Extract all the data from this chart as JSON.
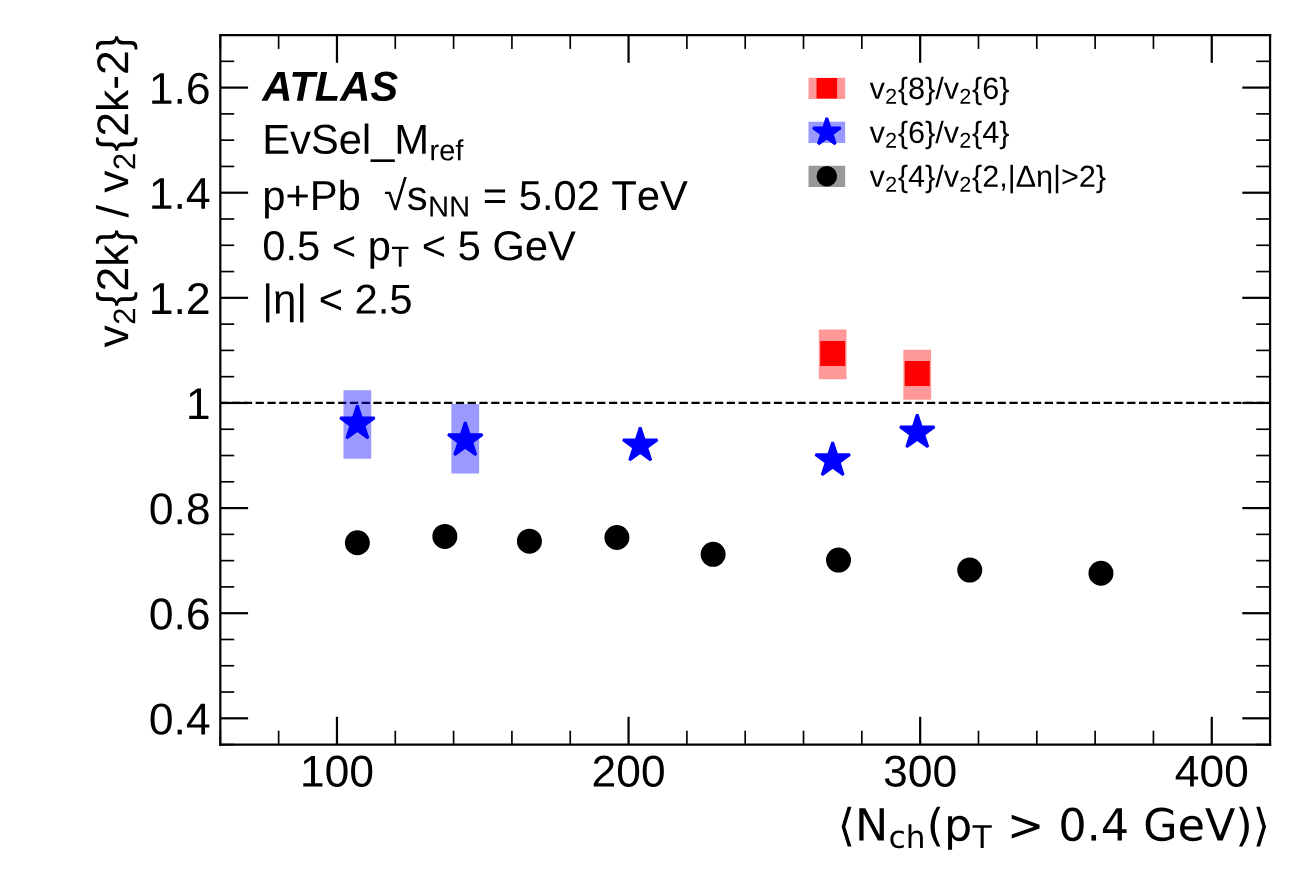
{
  "chart_data": {
    "type": "scatter",
    "xlabel": "⟨N$_{ch}$(p$_{T}$ > 0.4 GeV)⟩",
    "ylabel": "v$_{2}${2k} / v$_{2}${2k-2}",
    "annotations": [
      "ATLAS",
      "EvSel_M$_{ref}$",
      "p+Pb  √s$_{NN}$ = 5.02 TeV",
      "0.5 < p$_{T}$ < 5 GeV",
      "|η| < 2.5"
    ],
    "series": [
      {
        "name": "v$_{2}${8}/v$_{2}${6}",
        "color": "#ff0000",
        "marker": "square",
        "x": [
          270,
          299
        ],
        "values": [
          1.094,
          1.056
        ],
        "errors": [
          [
            1.045,
            1.14
          ],
          [
            1.006,
            1.101
          ]
        ]
      },
      {
        "name": "v$_{2}${6}/v$_{2}${4}",
        "color": "#0000ff",
        "marker": "star",
        "x": [
          107,
          144,
          204,
          270,
          299
        ],
        "values": [
          0.961,
          0.929,
          0.919,
          0.891,
          0.944
        ],
        "errors": [
          [
            0.894,
            1.024
          ],
          [
            0.866,
            0.998
          ],
          null,
          null,
          null
        ]
      },
      {
        "name": "v$_{2}${4}/v$_{2}${2,|Δη|>2}",
        "color": "#000000",
        "marker": "circle",
        "x": [
          107,
          137,
          166,
          196,
          229,
          272,
          317,
          362
        ],
        "values": [
          0.734,
          0.746,
          0.737,
          0.744,
          0.712,
          0.701,
          0.682,
          0.676
        ]
      }
    ],
    "xlim": [
      60,
      420
    ],
    "xticks": [
      100,
      200,
      300,
      400
    ],
    "ylim": [
      0.35,
      1.7
    ],
    "yticks": [
      {
        "value": 0.4,
        "label": "0.4"
      },
      {
        "value": 0.6,
        "label": "0.6"
      },
      {
        "value": 0.8,
        "label": "0.8"
      },
      {
        "value": 1,
        "label": "1"
      },
      {
        "value": 1.2,
        "label": "1.2"
      },
      {
        "value": 1.4,
        "label": "1.4"
      },
      {
        "value": 1.6,
        "label": "1.6"
      }
    ],
    "ref_lines": [
      {
        "axis": "y",
        "value": 1,
        "line_style": "dashed",
        "color": "#000000"
      }
    ],
    "legend": "top right",
    "grid": false
  }
}
